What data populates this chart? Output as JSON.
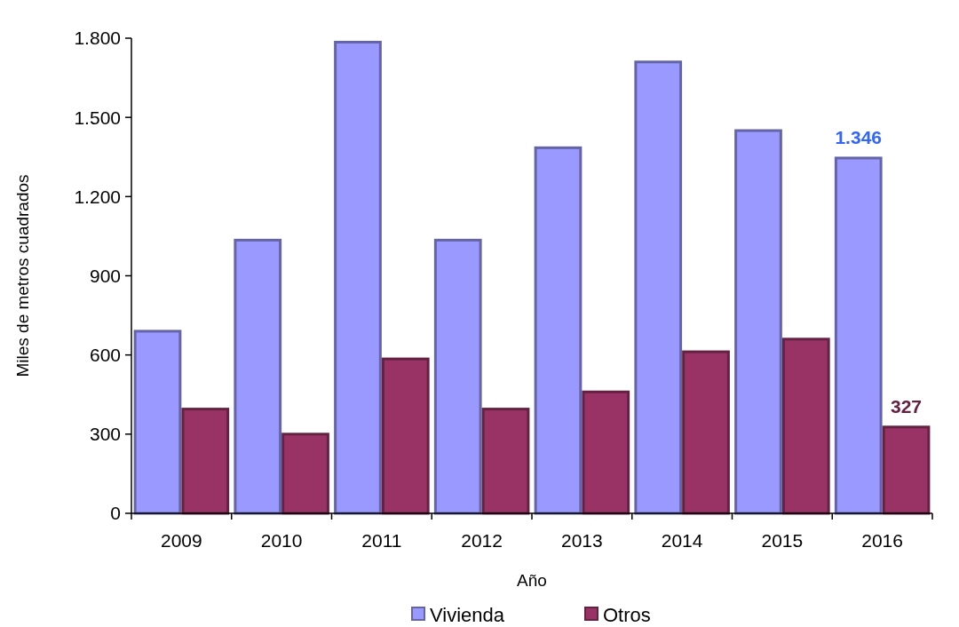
{
  "chart_data": {
    "type": "bar",
    "xlabel": "Año",
    "ylabel": "Miles de metros cuadrados",
    "categories": [
      "2009",
      "2010",
      "2011",
      "2012",
      "2013",
      "2014",
      "2015",
      "2016"
    ],
    "series": [
      {
        "name": "Vivienda",
        "color": "#9999ff",
        "values": [
          690,
          1035,
          1785,
          1035,
          1385,
          1710,
          1450,
          1346
        ],
        "value_labels": [
          null,
          null,
          null,
          null,
          null,
          null,
          null,
          "1.346"
        ]
      },
      {
        "name": "Otros",
        "color": "#993366",
        "values": [
          395,
          300,
          585,
          395,
          460,
          612,
          660,
          327
        ],
        "value_labels": [
          null,
          null,
          null,
          null,
          null,
          null,
          null,
          "327"
        ]
      }
    ],
    "ylim": [
      0,
      1800
    ],
    "yticks": [
      {
        "value": 0,
        "label": "0"
      },
      {
        "value": 300,
        "label": "300"
      },
      {
        "value": 600,
        "label": "600"
      },
      {
        "value": 900,
        "label": "900"
      },
      {
        "value": 1200,
        "label": "1.200"
      },
      {
        "value": 1500,
        "label": "1.500"
      },
      {
        "value": 1800,
        "label": "1.800"
      }
    ],
    "grid": false,
    "legend": "bottom"
  }
}
